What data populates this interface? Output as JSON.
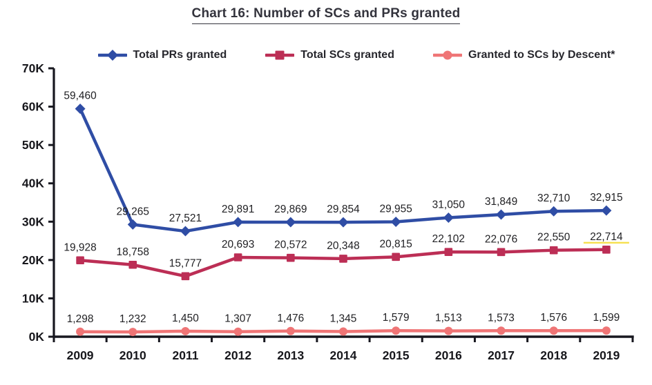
{
  "title": "Chart 16: Number of SCs and PRs granted",
  "chart_data": {
    "type": "line",
    "title": "Chart 16: Number of SCs and PRs granted",
    "categories": [
      "2009",
      "2010",
      "2011",
      "2012",
      "2013",
      "2014",
      "2015",
      "2016",
      "2017",
      "2018",
      "2019"
    ],
    "series": [
      {
        "name": "Total PRs granted",
        "marker": "diamond",
        "color": "#2f4da5",
        "values": [
          59460,
          29265,
          27521,
          29891,
          29869,
          29854,
          29955,
          31050,
          31849,
          32710,
          32915
        ],
        "labels": [
          "59,460",
          "29,265",
          "27,521",
          "29,891",
          "29,869",
          "29,854",
          "29,955",
          "31,050",
          "31,849",
          "32,710",
          "32,915"
        ]
      },
      {
        "name": "Total SCs granted",
        "marker": "square",
        "color": "#bc2e55",
        "values": [
          19928,
          18758,
          15777,
          20693,
          20572,
          20348,
          20815,
          22102,
          22076,
          22550,
          22714
        ],
        "labels": [
          "19,928",
          "18,758",
          "15,777",
          "20,693",
          "20,572",
          "20,348",
          "20,815",
          "22,102",
          "22,076",
          "22,550",
          "22,714"
        ]
      },
      {
        "name": "Granted to SCs by Descent*",
        "marker": "circle",
        "color": "#ef7576",
        "values": [
          1298,
          1232,
          1450,
          1307,
          1476,
          1345,
          1579,
          1513,
          1573,
          1576,
          1599
        ],
        "labels": [
          "1,298",
          "1,232",
          "1,450",
          "1,307",
          "1,476",
          "1,345",
          "1,579",
          "1,513",
          "1,573",
          "1,576",
          "1,599"
        ]
      }
    ],
    "xlabel": "",
    "ylabel": "",
    "ylim": [
      0,
      70000
    ],
    "ytick_step": 10000,
    "ytick_labels": [
      "0K",
      "10K",
      "20K",
      "30K",
      "40K",
      "50K",
      "60K",
      "70K"
    ],
    "grid": false,
    "legend_position": "top",
    "axis_color": "#17171f",
    "label_color": "#212124",
    "highlight": {
      "series": 1,
      "index": 10,
      "type": "underline",
      "color": "#f6e04e"
    }
  }
}
